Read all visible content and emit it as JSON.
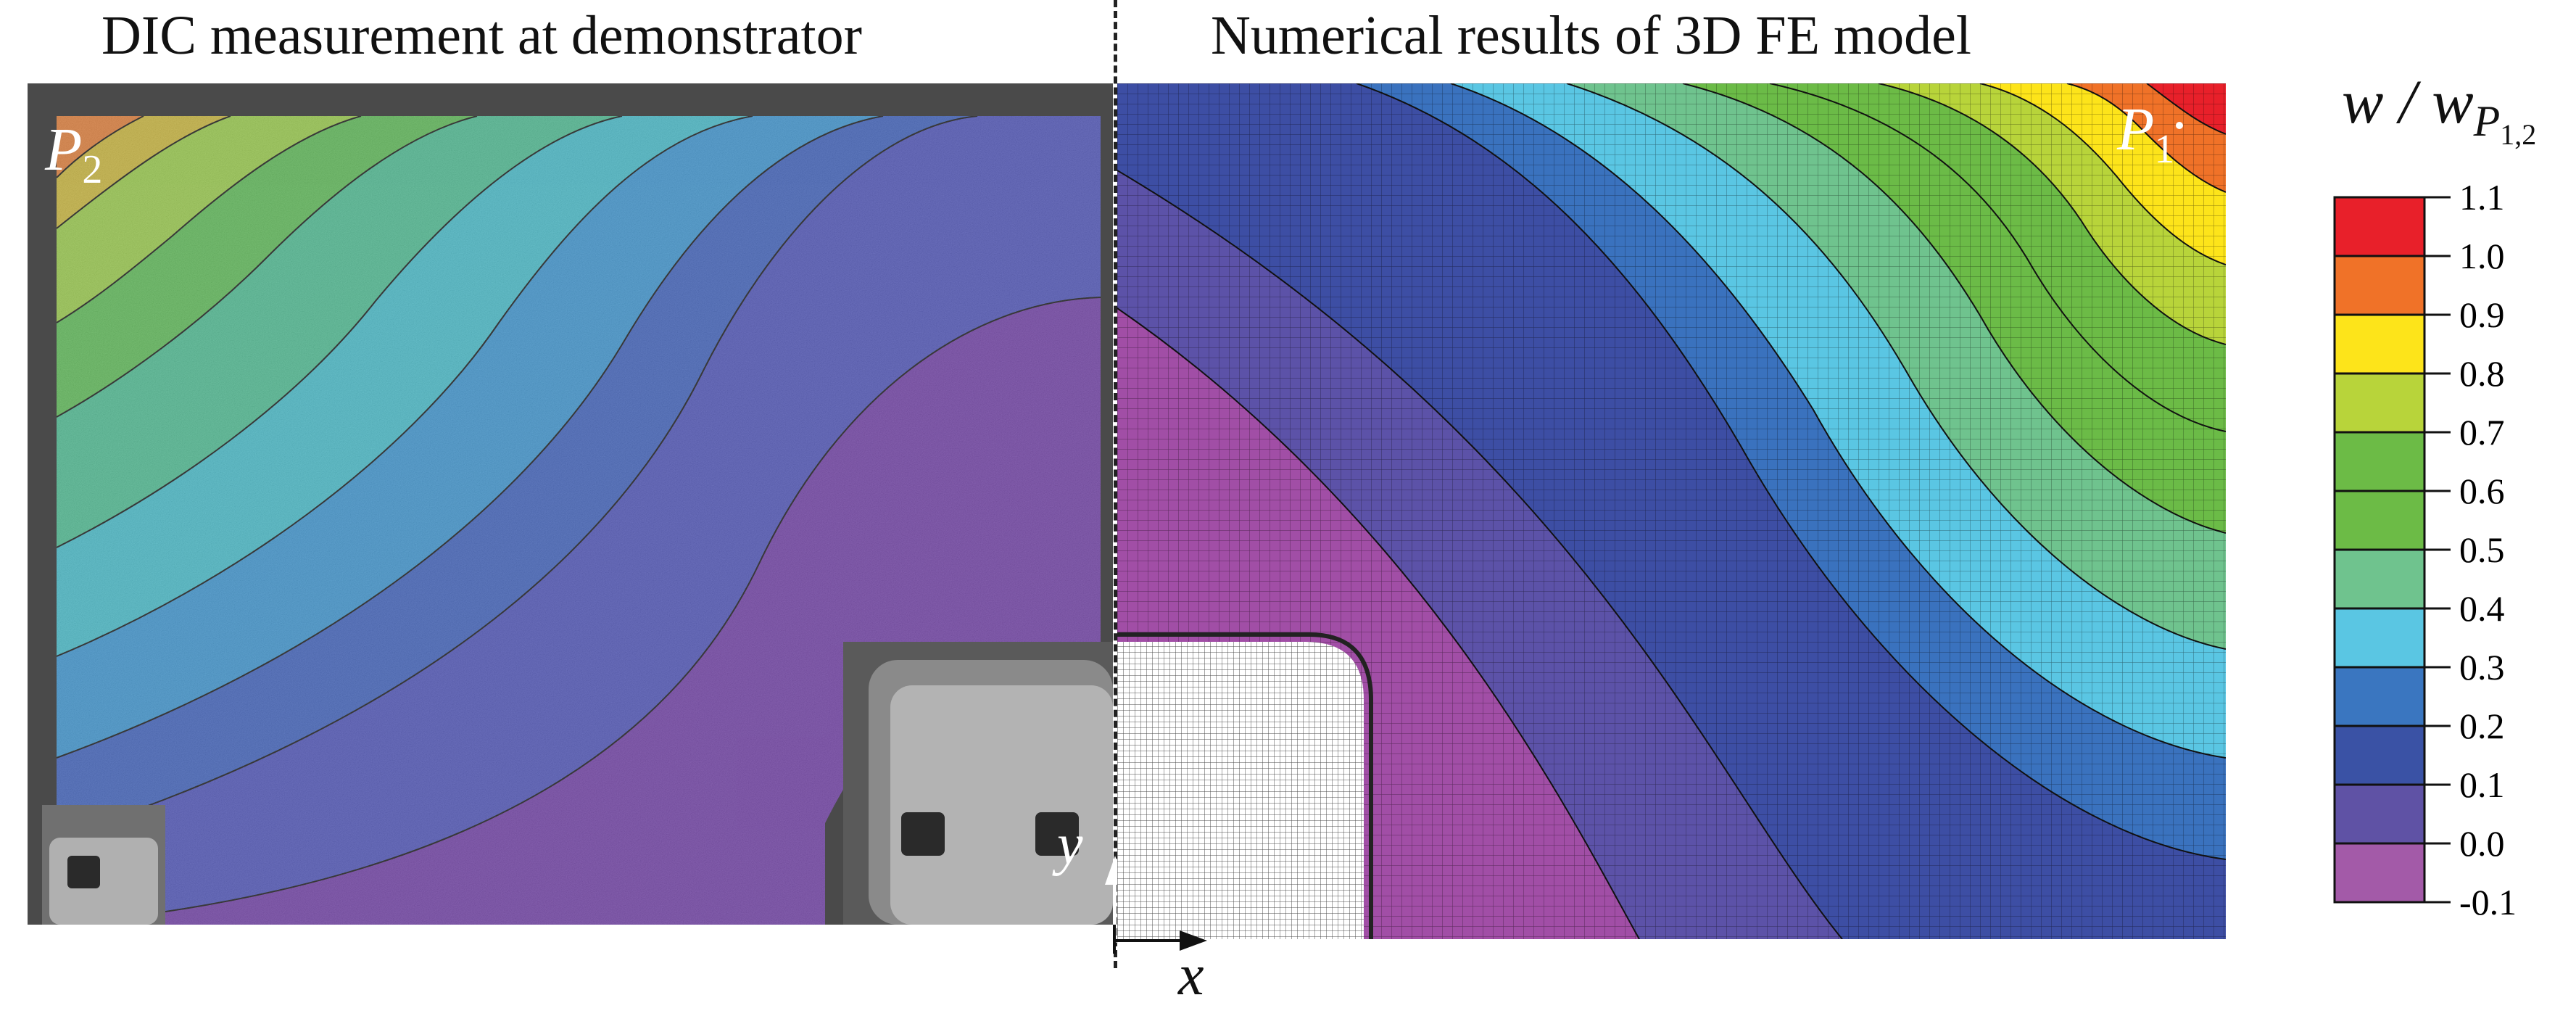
{
  "titles": {
    "left": "DIC measurement at demonstrator",
    "right": "Numerical results of 3D FE model"
  },
  "point_labels": {
    "p2": {
      "letter": "P",
      "sub": "2"
    },
    "p1": {
      "letter": "P",
      "sub": "1"
    }
  },
  "axes": {
    "x": "x",
    "y": "y"
  },
  "colorbar": {
    "label_main": "w / w",
    "label_sub": "P",
    "label_subsub": "1,2",
    "ticks": [
      "1.1",
      "1.0",
      "0.9",
      "0.8",
      "0.7",
      "0.6",
      "0.5",
      "0.4",
      "0.3",
      "0.2",
      "0.1",
      "0.0",
      "-0.1"
    ],
    "colors": [
      "#e8202a",
      "#f07228",
      "#fde41a",
      "#b8d43a",
      "#6cbb46",
      "#6cbb46",
      "#6fc38e",
      "#5ac6e3",
      "#3a76c0",
      "#3a52a5",
      "#5f52a5",
      "#a35aa8"
    ]
  }
}
